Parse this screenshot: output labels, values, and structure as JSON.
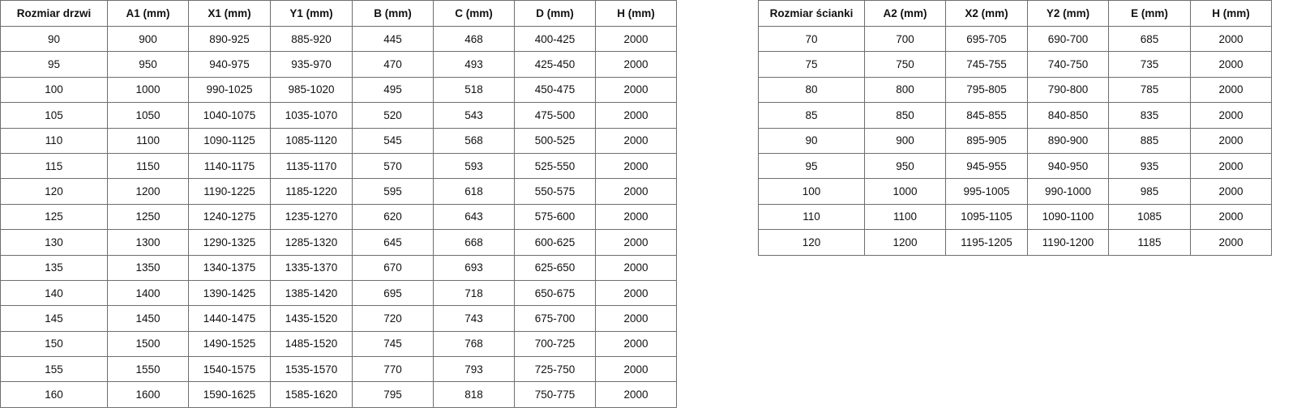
{
  "door_table": {
    "headers": [
      "Rozmiar drzwi",
      "A1 (mm)",
      "X1 (mm)",
      "Y1 (mm)",
      "B (mm)",
      "C (mm)",
      "D (mm)",
      "H (mm)"
    ],
    "rows": [
      [
        "90",
        "900",
        "890-925",
        "885-920",
        "445",
        "468",
        "400-425",
        "2000"
      ],
      [
        "95",
        "950",
        "940-975",
        "935-970",
        "470",
        "493",
        "425-450",
        "2000"
      ],
      [
        "100",
        "1000",
        "990-1025",
        "985-1020",
        "495",
        "518",
        "450-475",
        "2000"
      ],
      [
        "105",
        "1050",
        "1040-1075",
        "1035-1070",
        "520",
        "543",
        "475-500",
        "2000"
      ],
      [
        "110",
        "1100",
        "1090-1125",
        "1085-1120",
        "545",
        "568",
        "500-525",
        "2000"
      ],
      [
        "115",
        "1150",
        "1140-1175",
        "1135-1170",
        "570",
        "593",
        "525-550",
        "2000"
      ],
      [
        "120",
        "1200",
        "1190-1225",
        "1185-1220",
        "595",
        "618",
        "550-575",
        "2000"
      ],
      [
        "125",
        "1250",
        "1240-1275",
        "1235-1270",
        "620",
        "643",
        "575-600",
        "2000"
      ],
      [
        "130",
        "1300",
        "1290-1325",
        "1285-1320",
        "645",
        "668",
        "600-625",
        "2000"
      ],
      [
        "135",
        "1350",
        "1340-1375",
        "1335-1370",
        "670",
        "693",
        "625-650",
        "2000"
      ],
      [
        "140",
        "1400",
        "1390-1425",
        "1385-1420",
        "695",
        "718",
        "650-675",
        "2000"
      ],
      [
        "145",
        "1450",
        "1440-1475",
        "1435-1520",
        "720",
        "743",
        "675-700",
        "2000"
      ],
      [
        "150",
        "1500",
        "1490-1525",
        "1485-1520",
        "745",
        "768",
        "700-725",
        "2000"
      ],
      [
        "155",
        "1550",
        "1540-1575",
        "1535-1570",
        "770",
        "793",
        "725-750",
        "2000"
      ],
      [
        "160",
        "1600",
        "1590-1625",
        "1585-1620",
        "795",
        "818",
        "750-775",
        "2000"
      ]
    ]
  },
  "wall_table": {
    "headers": [
      "Rozmiar ścianki",
      "A2 (mm)",
      "X2 (mm)",
      "Y2 (mm)",
      "E (mm)",
      "H (mm)"
    ],
    "rows": [
      [
        "70",
        "700",
        "695-705",
        "690-700",
        "685",
        "2000"
      ],
      [
        "75",
        "750",
        "745-755",
        "740-750",
        "735",
        "2000"
      ],
      [
        "80",
        "800",
        "795-805",
        "790-800",
        "785",
        "2000"
      ],
      [
        "85",
        "850",
        "845-855",
        "840-850",
        "835",
        "2000"
      ],
      [
        "90",
        "900",
        "895-905",
        "890-900",
        "885",
        "2000"
      ],
      [
        "95",
        "950",
        "945-955",
        "940-950",
        "935",
        "2000"
      ],
      [
        "100",
        "1000",
        "995-1005",
        "990-1000",
        "985",
        "2000"
      ],
      [
        "110",
        "1100",
        "1095-1105",
        "1090-1100",
        "1085",
        "2000"
      ],
      [
        "120",
        "1200",
        "1195-1205",
        "1190-1200",
        "1185",
        "2000"
      ]
    ]
  }
}
